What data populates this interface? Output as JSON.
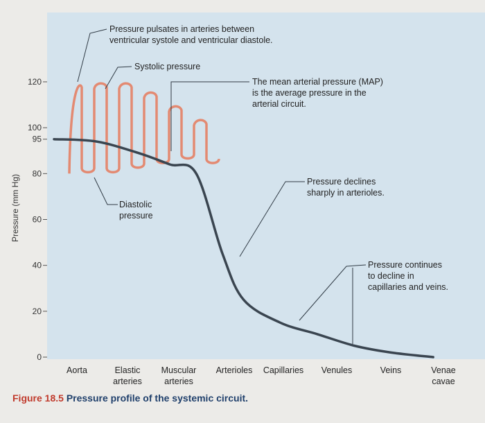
{
  "caption": {
    "number": "Figure 18.5",
    "text": "Pressure profile of the systemic circuit."
  },
  "chart_data": {
    "type": "line",
    "ylabel": "Pressure (mm Hg)",
    "ylim": [
      0,
      135
    ],
    "yticks": [
      "120",
      "100",
      "95",
      "80",
      "60",
      "40",
      "20",
      "0"
    ],
    "ytick_values": [
      120,
      100,
      95,
      80,
      60,
      40,
      20,
      0
    ],
    "categories": [
      {
        "line1": "Aorta",
        "line2": ""
      },
      {
        "line1": "Elastic",
        "line2": "arteries"
      },
      {
        "line1": "Muscular",
        "line2": "arteries"
      },
      {
        "line1": "Arterioles",
        "line2": ""
      },
      {
        "line1": "Capillaries",
        "line2": ""
      },
      {
        "line1": "Venules",
        "line2": ""
      },
      {
        "line1": "Veins",
        "line2": ""
      },
      {
        "line1": "Venae",
        "line2": "cavae"
      }
    ],
    "series": [
      {
        "x": [
          0,
          0.8,
          1.6,
          2.2,
          2.7,
          3.2,
          3.6,
          4.3,
          5.0,
          5.7,
          6.4,
          7.2
        ],
        "values": [
          95,
          94,
          89,
          84,
          80,
          45,
          25,
          15,
          10,
          5,
          2,
          0
        ]
      },
      {
        "oscillation_systolic": [
          120,
          120,
          120,
          116,
          110,
          104
        ],
        "oscillation_diastolic": [
          80,
          80,
          82,
          84,
          86,
          84
        ]
      }
    ],
    "annotations": {
      "pulsates": {
        "line1": "Pressure pulsates in arteries between",
        "line2": "ventricular systole and ventricular diastole."
      },
      "systolic": "Systolic pressure",
      "map": {
        "line1": "The mean arterial pressure (MAP)",
        "line2": "is the average pressure in the",
        "line3": "arterial circuit."
      },
      "diastolic": {
        "line1": "Diastolic",
        "line2": "pressure"
      },
      "arterioles": {
        "line1": "Pressure declines",
        "line2": "sharply in arterioles."
      },
      "capillaries": {
        "line1": "Pressure continues",
        "line2": "to decline in",
        "line3": "capillaries and veins."
      }
    },
    "colors": {
      "background": "#d4e3ed",
      "mean_line": "#3a4550",
      "oscillation": "#e38a72",
      "leader": "#2f3a44",
      "axis": "#555555",
      "caption_number": "#c0392b",
      "caption_text": "#1f3f6b"
    }
  }
}
